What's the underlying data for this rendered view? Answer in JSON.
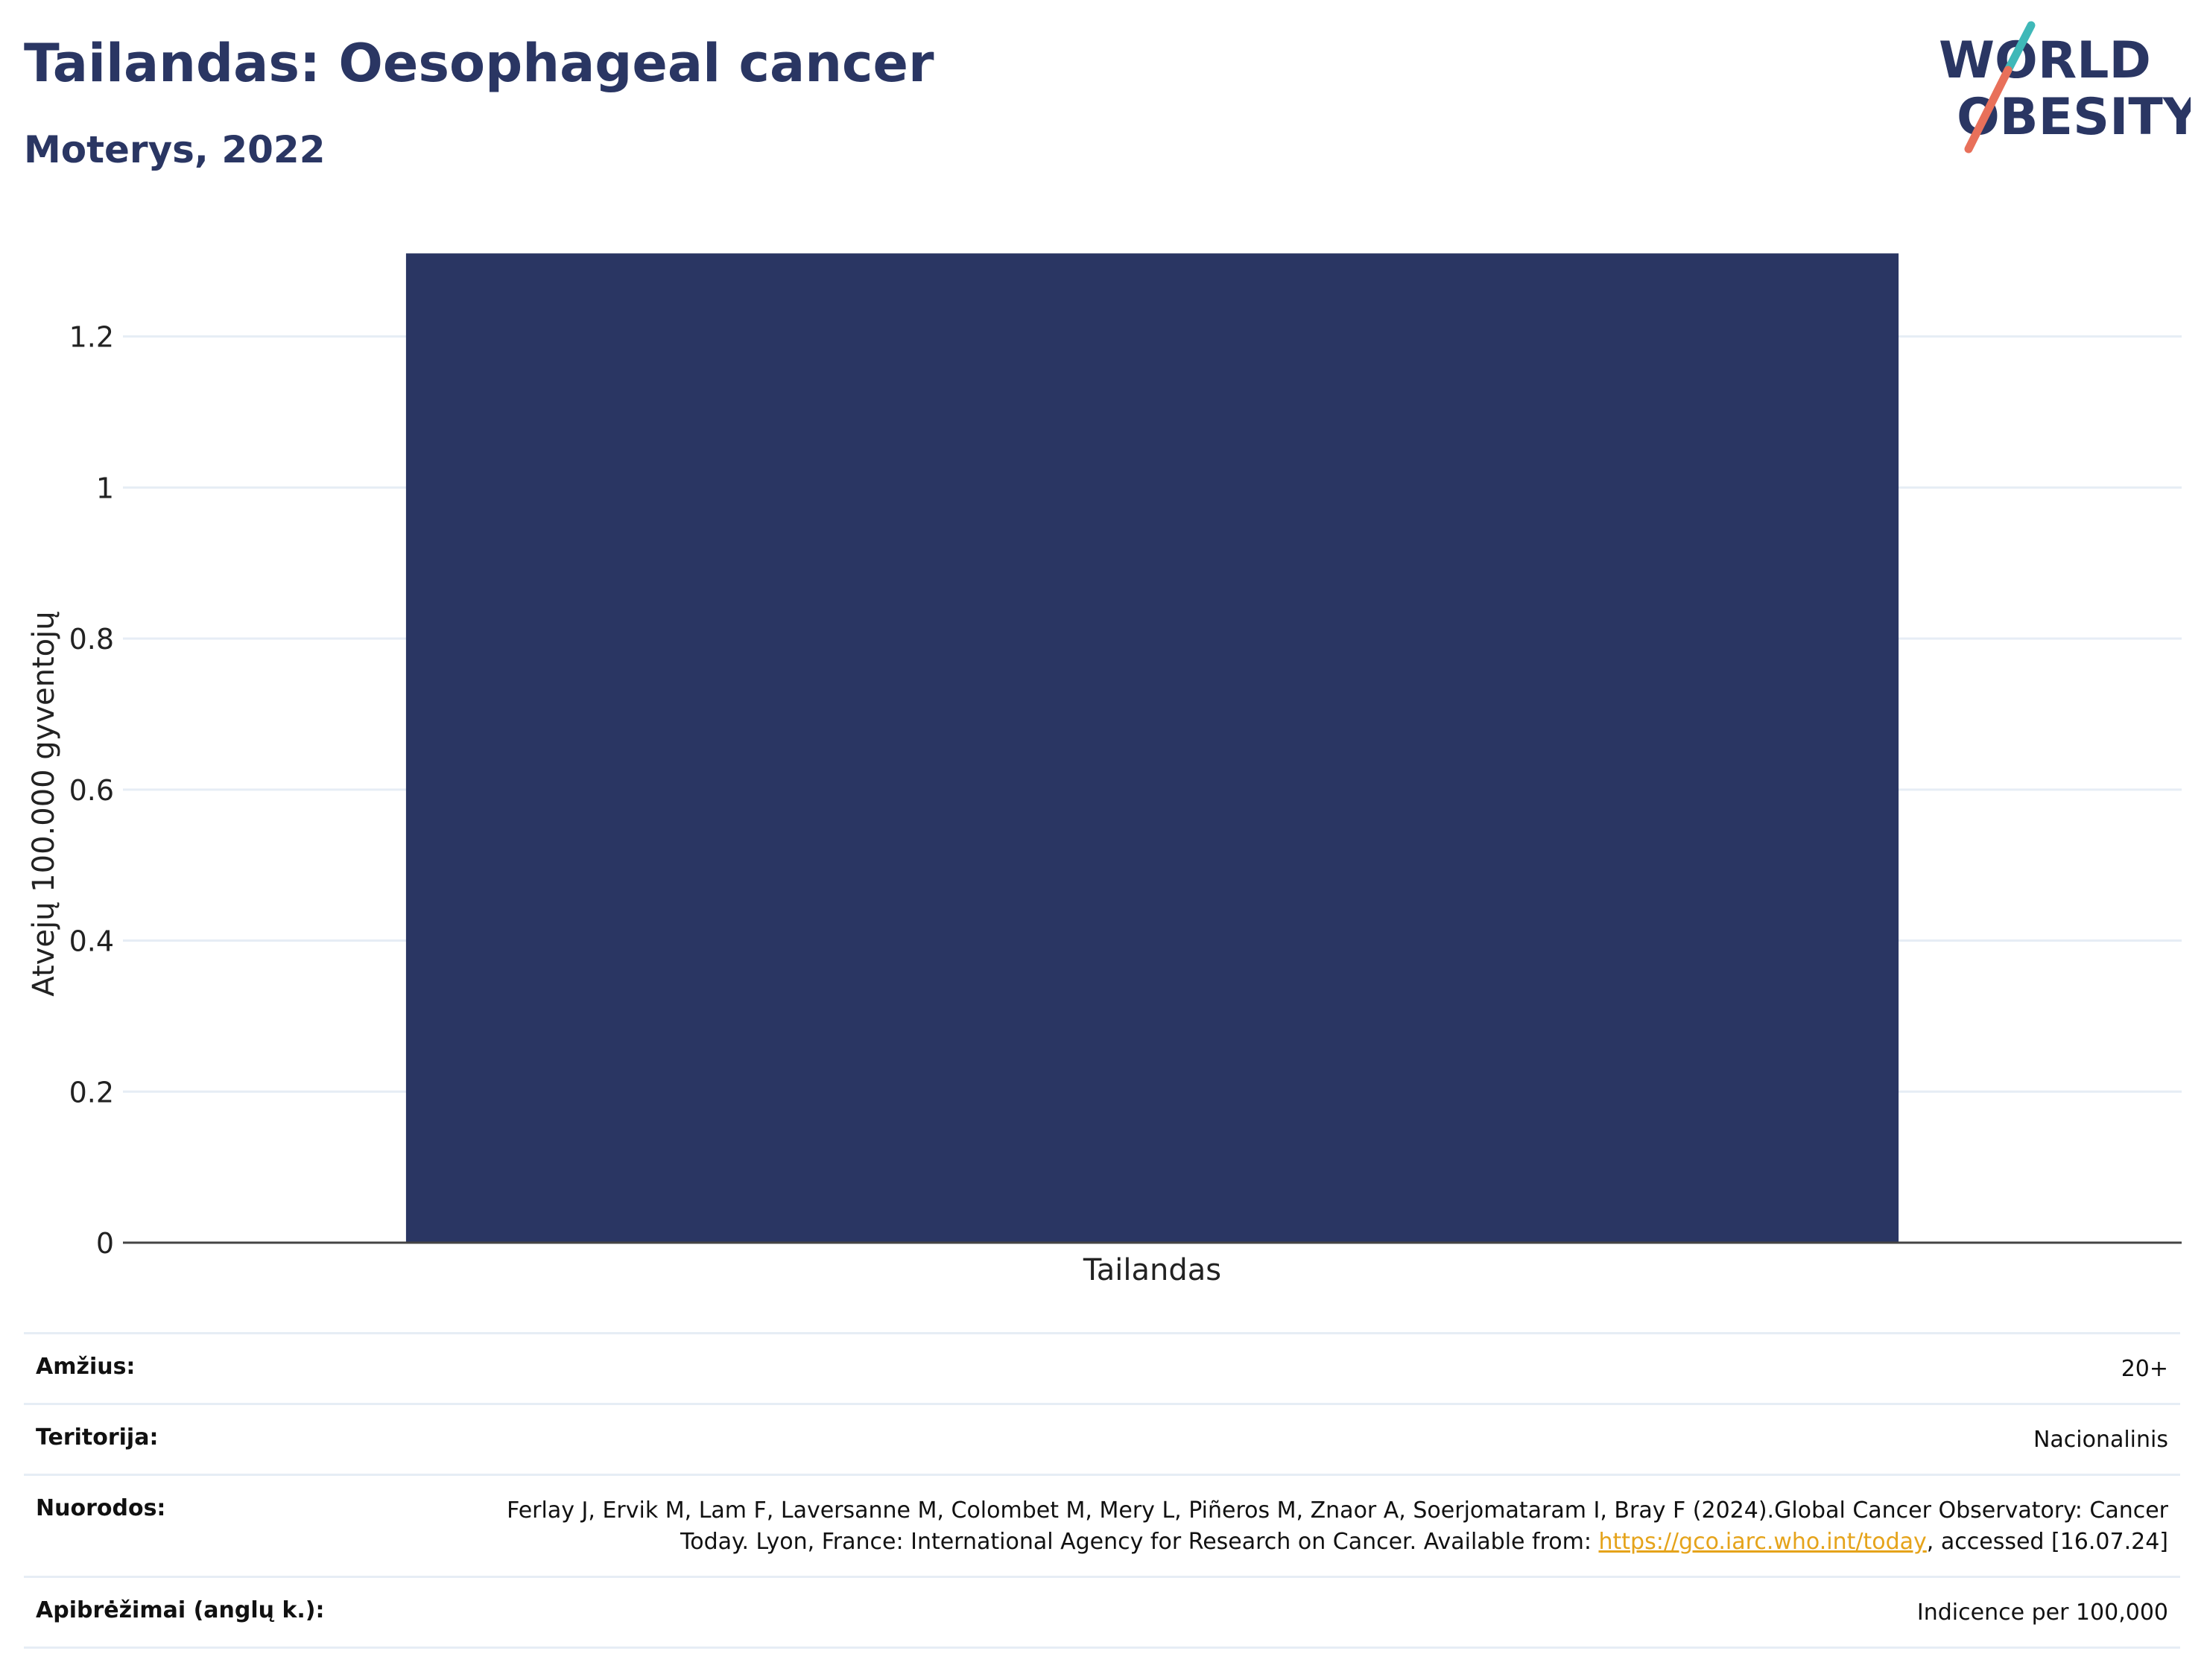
{
  "header": {
    "title": "Tailandas: Oesophageal cancer",
    "subtitle": "Moterys, 2022",
    "logo_text_line1": "WORLD",
    "logo_text_line2": "OBESITY"
  },
  "chart_data": {
    "type": "bar",
    "categories": [
      "Tailandas"
    ],
    "values": [
      1.31
    ],
    "ylabel": "Atvejų 100.000 gyventojų",
    "xlabel": "",
    "ylim": [
      0,
      1.32
    ],
    "yticks": [
      0,
      0.2,
      0.4,
      0.6,
      0.8,
      1,
      1.2
    ],
    "ytick_labels": [
      "0",
      "0.2",
      "0.4",
      "0.6",
      "0.8",
      "1",
      "1.2"
    ],
    "grid": true,
    "bar_color": "#2a3663",
    "grid_color": "#e6edf5"
  },
  "info": {
    "age_label": "Amžius:",
    "age_value": "20+",
    "territory_label": "Teritorija:",
    "territory_value": "Nacionalinis",
    "refs_label": "Nuorodos:",
    "refs_text_1": "Ferlay J, Ervik M, Lam F, Laversanne M, Colombet M, Mery L, Piñeros M, Znaor A, Soerjomataram I, Bray F (2024).Global Cancer Observatory: Cancer Today. Lyon, France: International Agency for Research on Cancer. Available from: ",
    "refs_link": "https://gco.iarc.who.int/today",
    "refs_text_2": ", accessed [16.07.24]",
    "defs_label": "Apibrėžimai (anglų k.):",
    "defs_value": "Indicence per 100,000"
  },
  "colors": {
    "brand_navy": "#2a3663",
    "logo_teal": "#3fb8b8",
    "logo_coral": "#e8705a",
    "link": "#e5a31a"
  }
}
